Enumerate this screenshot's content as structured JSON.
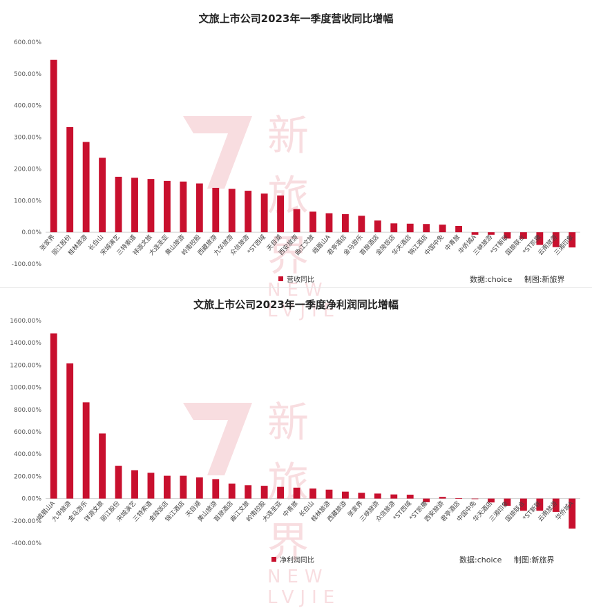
{
  "watermark": {
    "cn": "新旅界",
    "en": "NEW LVJIE"
  },
  "credit": {
    "source_label": "数据:",
    "source": "choice",
    "made_label": "制图:",
    "made": "新旅界"
  },
  "colors": {
    "bar": "#c8102e",
    "axis": "#d0d0d0"
  },
  "chart_data": [
    {
      "type": "bar",
      "title": "文旅上市公司2023年一季度营收同比增幅",
      "legend": "营收同比",
      "legend_position": "bottom-left",
      "ylim": [
        -100,
        600
      ],
      "yticks": [
        600,
        500,
        400,
        300,
        200,
        100,
        0,
        -100
      ],
      "ytick_labels": [
        "600.00%",
        "500.00%",
        "400.00%",
        "300.00%",
        "200.00%",
        "100.00%",
        "0.00%",
        "-100.00%"
      ],
      "categories": [
        "张家界",
        "丽江股份",
        "桂林旅游",
        "长白山",
        "宋城演艺",
        "三特索道",
        "祥源文旅",
        "大连圣亚",
        "黄山旅游",
        "岭南控股",
        "西藏旅游",
        "九华旅游",
        "众信旅游",
        "*ST西域",
        "天目湖",
        "西安旅游",
        "曲江文旅",
        "峨眉山A",
        "君亭酒店",
        "金马游乐",
        "首旅酒店",
        "金陵饭店",
        "华天酒店",
        "锦江酒店",
        "中国中免",
        "中青旅",
        "华侨城A",
        "三峡旅游",
        "*ST新联",
        "国旅联合",
        "*ST凯撒",
        "云南旅游",
        "三湘印象"
      ],
      "values": [
        544,
        332,
        285,
        235,
        175,
        172,
        168,
        162,
        160,
        154,
        140,
        137,
        131,
        122,
        116,
        73,
        65,
        60,
        57,
        52,
        37,
        28,
        27,
        26,
        24,
        20,
        -8,
        -8,
        -20,
        -21,
        -40,
        -47,
        -48
      ]
    },
    {
      "type": "bar",
      "title": "文旅上市公司2023年一季度净利润同比增幅",
      "legend": "净利润同比",
      "legend_position": "bottom-center",
      "ylim": [
        -400,
        1600
      ],
      "yticks": [
        1600,
        1400,
        1200,
        1000,
        800,
        600,
        400,
        200,
        0,
        -200,
        -400
      ],
      "ytick_labels": [
        "1600.00%",
        "1400.00%",
        "1200.00%",
        "1000.00%",
        "800.00%",
        "600.00%",
        "400.00%",
        "200.00%",
        "0.00%",
        "-200.00%",
        "-400.00%"
      ],
      "categories": [
        "峨眉山A",
        "九华旅游",
        "金马游乐",
        "祥源文旅",
        "丽江股份",
        "宋城演艺",
        "三特索道",
        "金陵饭店",
        "锦江酒店",
        "天目湖",
        "黄山旅游",
        "首旅酒店",
        "曲江文旅",
        "岭南控股",
        "大连圣亚",
        "中青旅",
        "长白山",
        "桂林旅游",
        "西藏旅游",
        "张家界",
        "三峡旅游",
        "众信旅游",
        "*ST西域",
        "*ST凯撒",
        "西安旅游",
        "君亭酒店",
        "中国中免",
        "华天酒店",
        "三湘印象",
        "国旅联合",
        "*ST新联",
        "云南旅游",
        "华侨城A"
      ],
      "values": [
        1485,
        1215,
        865,
        585,
        295,
        255,
        232,
        205,
        205,
        190,
        175,
        135,
        120,
        115,
        105,
        98,
        90,
        80,
        62,
        52,
        45,
        37,
        35,
        -33,
        15,
        3,
        -5,
        -35,
        -65,
        -110,
        -110,
        -120,
        -270
      ]
    }
  ]
}
